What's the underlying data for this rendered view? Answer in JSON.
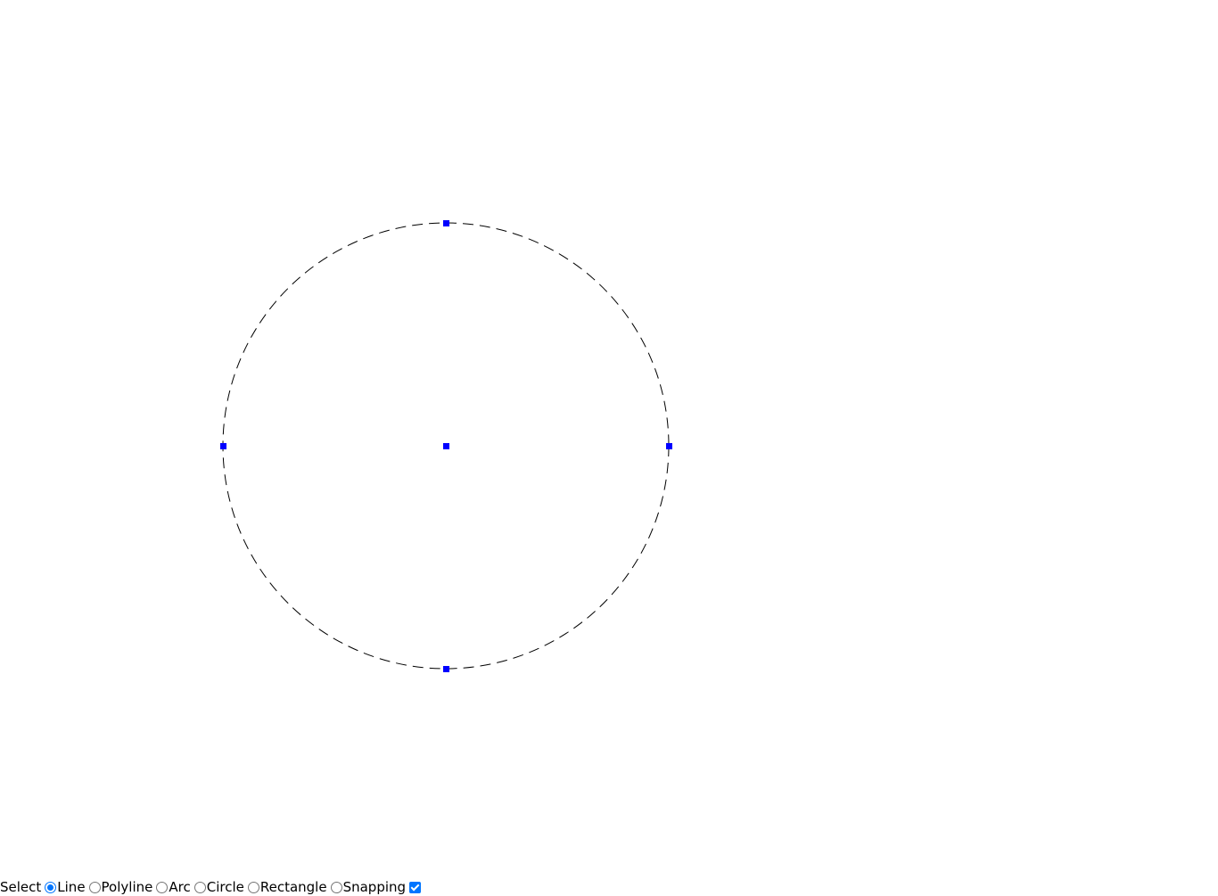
{
  "canvas": {
    "circle": {
      "stroke": "#000000",
      "dash": "12 7",
      "handle_color": "#0000ff"
    }
  },
  "toolbar": {
    "label": "Select",
    "options": [
      {
        "label": "Line",
        "checked": true
      },
      {
        "label": "Polyline",
        "checked": false
      },
      {
        "label": "Arc",
        "checked": false
      },
      {
        "label": "Circle",
        "checked": false
      },
      {
        "label": "Rectangle",
        "checked": false
      }
    ],
    "snapping": {
      "label": "Snapping",
      "checked": true
    }
  }
}
